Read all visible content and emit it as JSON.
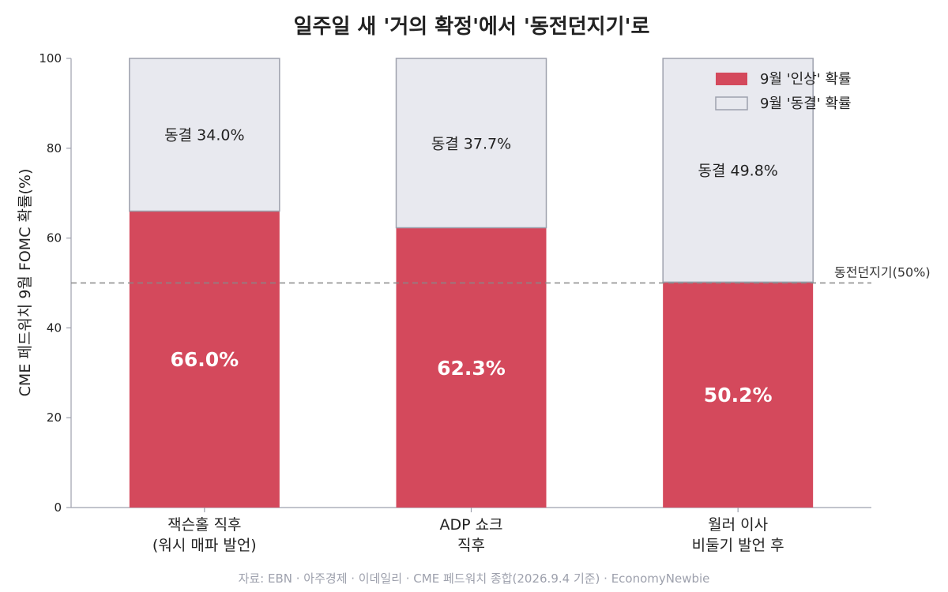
{
  "chart_data": {
    "type": "bar",
    "stacked": true,
    "title": "일주일 새 '거의 확정'에서 '동전던지기'로",
    "ylabel": "CME 페드워치 9월 FOMC 확률(%)",
    "xlabel": "",
    "ylim": [
      0,
      100
    ],
    "yticks": [
      0,
      20,
      40,
      60,
      80,
      100
    ],
    "categories": [
      [
        "잭슨홀 직후",
        "(워시 매파 발언)"
      ],
      [
        "ADP 쇼크",
        "직후"
      ],
      [
        "월러 이사",
        "비둘기 발언 후"
      ]
    ],
    "series": [
      {
        "name": "9월 '인상' 확률",
        "values": [
          66.0,
          62.3,
          50.2
        ],
        "labels": [
          "66.0%",
          "62.3%",
          "50.2%"
        ],
        "color": "#d4495c"
      },
      {
        "name": "9월 '동결' 확률",
        "values": [
          34.0,
          37.7,
          49.8
        ],
        "labels": [
          "동결 34.0%",
          "동결 37.7%",
          "동결 49.8%"
        ],
        "color": "#e8e9ef",
        "edge_color": "#9ea1ad"
      }
    ],
    "reference_line": {
      "y": 50,
      "label": "동전던지기(50%)",
      "color": "#888888"
    },
    "legend_position": "top-right",
    "grid": false
  },
  "source_note": "자료: EBN · 아주경제 · 이데일리 · CME 페드워치 종합(2026.9.4 기준) · EconomyNewbie",
  "colors": {
    "axis": "#9ea1ad",
    "text": "#222222",
    "note": "#9ea1ad"
  }
}
